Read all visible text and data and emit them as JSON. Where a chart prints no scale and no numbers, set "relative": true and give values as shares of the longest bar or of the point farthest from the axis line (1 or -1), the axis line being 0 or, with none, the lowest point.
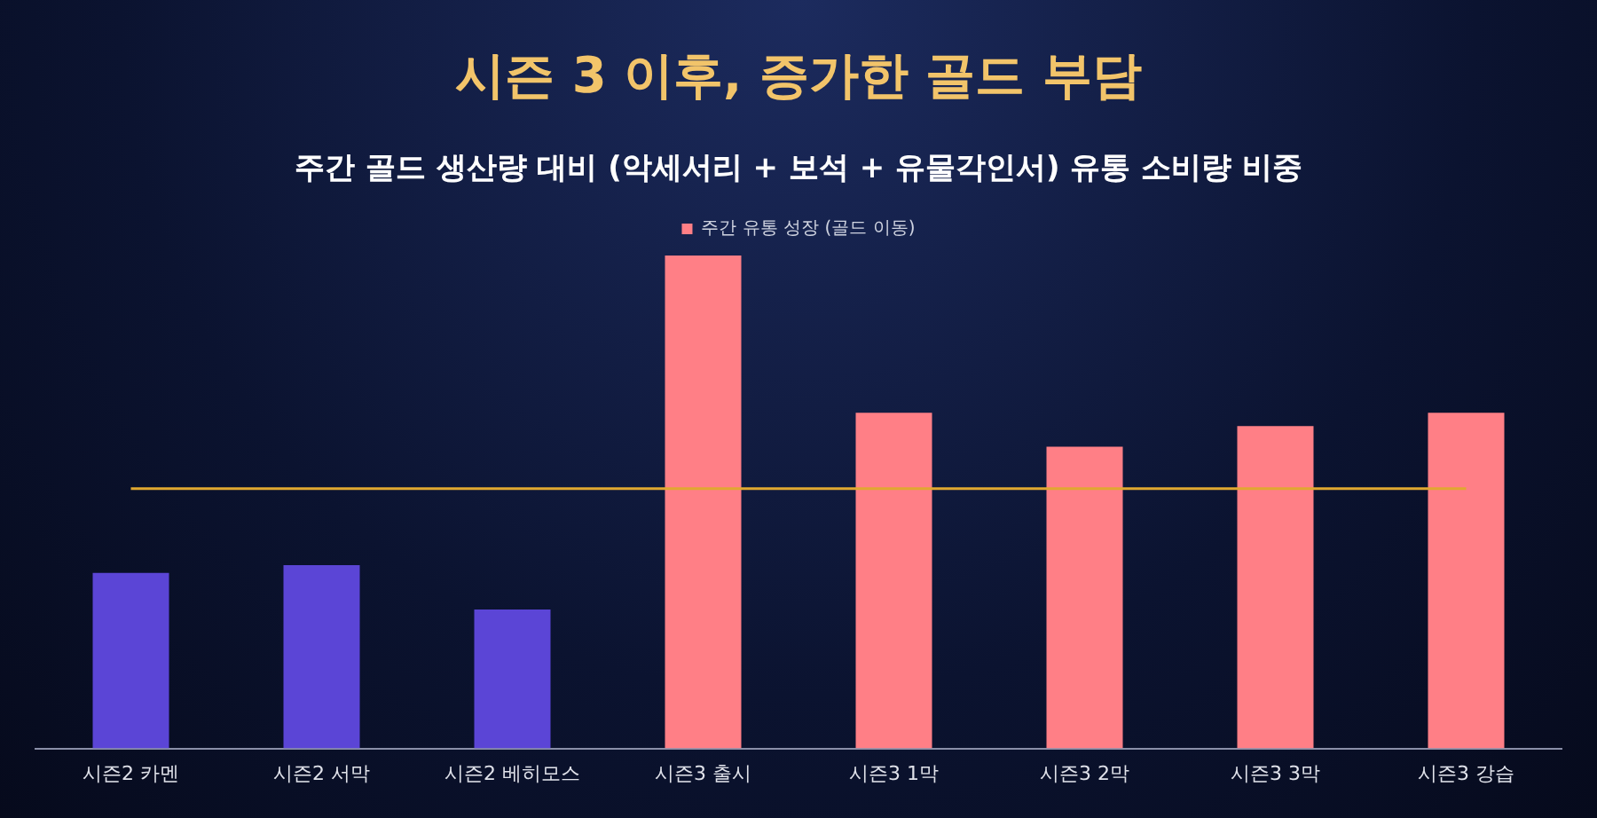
{
  "chart_data": {
    "type": "bar",
    "title": "시즌 3 이후, 증가한 골드 부담",
    "subtitle": "주간 골드 생산량 대비 (악세서리 + 보석 + 유물각인서) 유통 소비량 비중",
    "categories": [
      "시즌2 카멘",
      "시즌2 서막",
      "시즌2 베히모스",
      "시즌3 출시",
      "시즌3 1막",
      "시즌3 2막",
      "시즌3 3막",
      "시즌3 강습"
    ],
    "relative": true,
    "series": [
      {
        "name": "주간 유통 성장 (골드 이동)",
        "color": "#ff7f86",
        "values": [
          0.356,
          0.372,
          0.282,
          1,
          0.681,
          0.612,
          0.654,
          0.681
        ],
        "colors": [
          "#5b45d6",
          "#5b45d6",
          "#5b45d6",
          "#ff7f86",
          "#ff7f86",
          "#ff7f86",
          "#ff7f86",
          "#ff7f86"
        ]
      }
    ],
    "ref_lines": [
      {
        "axis": "y",
        "value": 0.527,
        "color": "#e0a830"
      }
    ],
    "legend": "top",
    "grid": false
  }
}
